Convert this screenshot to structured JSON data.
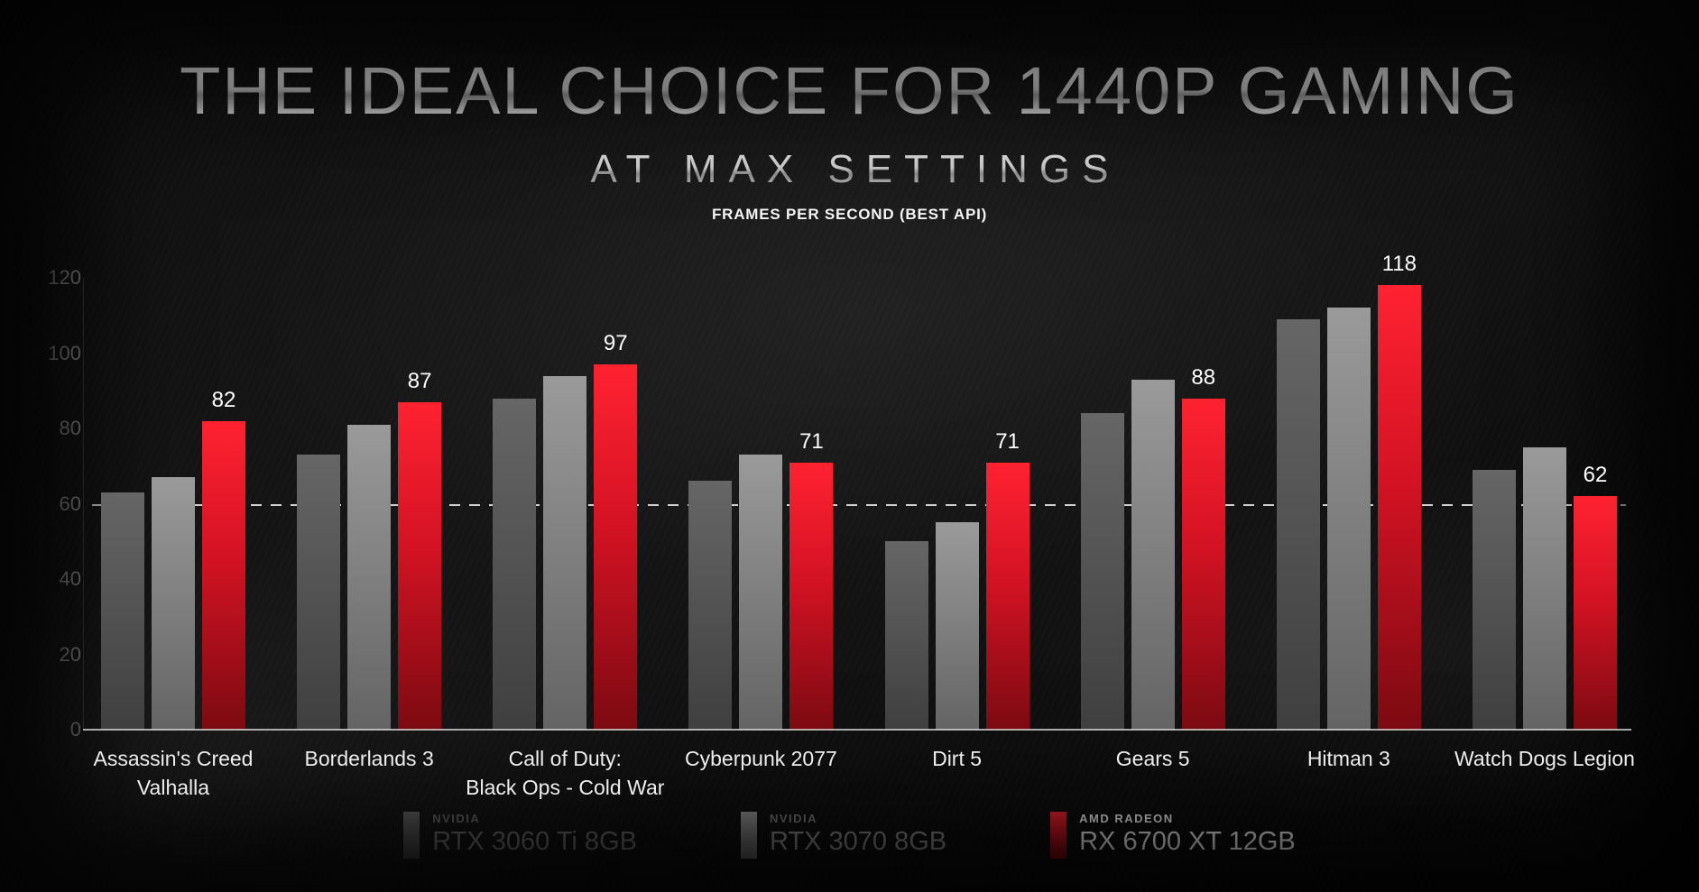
{
  "header": {
    "title": "THE IDEAL CHOICE FOR 1440P GAMING",
    "subtitle": "AT MAX SETTINGS",
    "note": "FRAMES PER SECOND (BEST API)"
  },
  "legend": [
    {
      "brand": "NVIDIA",
      "model": "RTX 3060 Ti 8GB",
      "brand_color": "#6b6b6b",
      "model_color": "#707070"
    },
    {
      "brand": "NVIDIA",
      "model": "RTX 3070 8GB",
      "brand_color": "#7e7e7e",
      "model_color": "#8f8f8f"
    },
    {
      "brand": "AMD RADEON",
      "model": "RX 6700 XT 12GB",
      "brand_color": "#ffffff",
      "model_color": "#ffffff"
    }
  ],
  "chart_data": {
    "type": "bar",
    "title": "THE IDEAL CHOICE FOR 1440P GAMING",
    "subtitle": "AT MAX SETTINGS",
    "units_note": "FRAMES PER SECOND (BEST API)",
    "categories": [
      "Assassin's Creed Valhalla",
      "Borderlands 3",
      "Call of Duty: Black Ops - Cold War",
      "Cyberpunk 2077",
      "Dirt 5",
      "Gears 5",
      "Hitman 3",
      "Watch Dogs Legion"
    ],
    "category_lines": [
      [
        "Assassin's Creed",
        "Valhalla"
      ],
      [
        "Borderlands 3"
      ],
      [
        "Call of Duty:",
        "Black Ops - Cold War"
      ],
      [
        "Cyberpunk 2077"
      ],
      [
        "Dirt 5"
      ],
      [
        "Gears 5"
      ],
      [
        "Hitman 3"
      ],
      [
        "Watch Dogs Legion"
      ]
    ],
    "series": [
      {
        "name": "NVIDIA RTX 3060 Ti 8GB",
        "values": [
          63,
          73,
          88,
          66,
          50,
          84,
          109,
          69
        ],
        "show_labels": false,
        "color_top": "#666666",
        "color_bottom": "#3f3f3f"
      },
      {
        "name": "NVIDIA RTX 3070 8GB",
        "values": [
          67,
          81,
          94,
          73,
          55,
          93,
          112,
          75
        ],
        "show_labels": false,
        "color_top": "#9a9a9a",
        "color_bottom": "#646464"
      },
      {
        "name": "AMD RADEON RX 6700 XT 12GB",
        "values": [
          82,
          87,
          97,
          71,
          71,
          88,
          118,
          62
        ],
        "show_labels": true,
        "color_top": "#ff2231",
        "color_mid": "#d31223",
        "color_bottom": "#7c0a11"
      }
    ],
    "ylim": [
      0,
      120
    ],
    "yticks": [
      120,
      100,
      80,
      60,
      40,
      20,
      0
    ],
    "reference_line": 60,
    "grid": false,
    "legend_position": "bottom"
  }
}
